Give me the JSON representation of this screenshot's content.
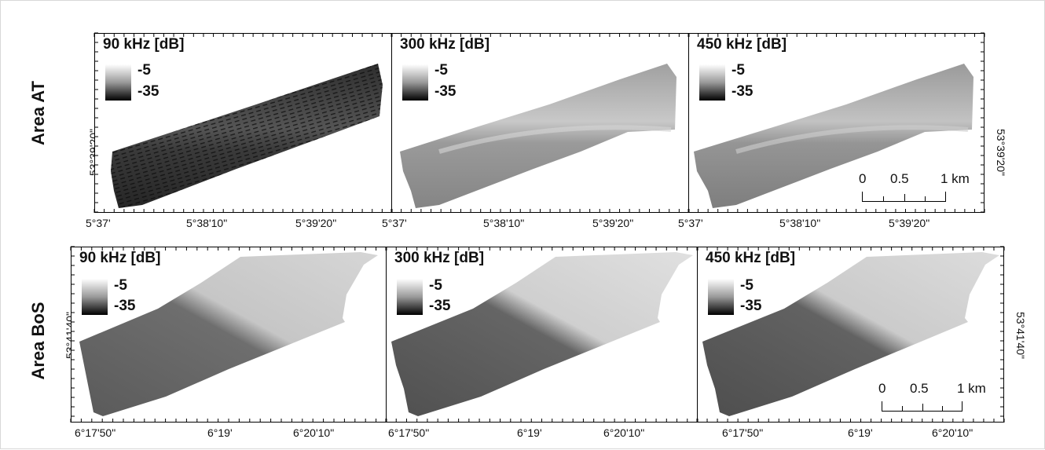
{
  "colors": {
    "frame": "#000000",
    "background": "#ffffff",
    "colorbar_high": "#ffffff",
    "colorbar_low": "#000000"
  },
  "rows": [
    {
      "label": "Area AT",
      "lat_label": "53°39'20\"",
      "lon_labels": [
        "5°37'",
        "5°38'10\"",
        "5°39'20\""
      ],
      "panels": [
        {
          "title": "90 kHz [dB]",
          "colorbar": {
            "max": "-5",
            "min": "-35"
          },
          "texture": "striped"
        },
        {
          "title": "300 kHz [dB]",
          "colorbar": {
            "max": "-5",
            "min": "-35"
          },
          "texture": "smooth"
        },
        {
          "title": "450 kHz [dB]",
          "colorbar": {
            "max": "-5",
            "min": "-35"
          },
          "texture": "smooth"
        }
      ],
      "scalebar": {
        "labels": [
          "0",
          "0.5",
          "1 km"
        ]
      }
    },
    {
      "label": "Area BoS",
      "lat_label": "53°41'40\"",
      "lon_labels": [
        "6°17'50\"",
        "6°19'",
        "6°20'10\""
      ],
      "panels": [
        {
          "title": "90 kHz [dB]",
          "colorbar": {
            "max": "-5",
            "min": "-35"
          }
        },
        {
          "title": "300 kHz [dB]",
          "colorbar": {
            "max": "-5",
            "min": "-35"
          }
        },
        {
          "title": "450 kHz [dB]",
          "colorbar": {
            "max": "-5",
            "min": "-35"
          }
        }
      ],
      "scalebar": {
        "labels": [
          "0",
          "0.5",
          "1 km"
        ]
      }
    }
  ]
}
